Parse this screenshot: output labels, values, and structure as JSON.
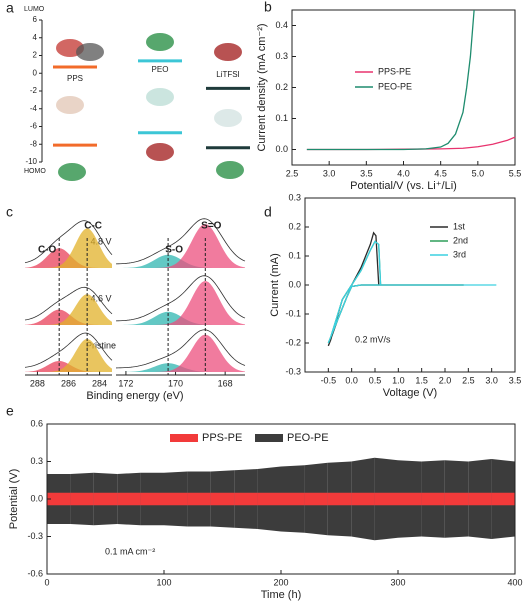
{
  "chart_data": [
    {
      "type": "energy-level",
      "panel_label": "a",
      "top_label": "LUMO",
      "bottom_label": "HOMO",
      "ylim": [
        -10,
        6
      ],
      "yticks": [
        6,
        4,
        2,
        0,
        -2,
        -4,
        -6,
        -8,
        -10
      ],
      "categories": [
        "PPS",
        "PEO",
        "LiTFSI"
      ],
      "colors": [
        "#f26b2a",
        "#3cc6d6",
        "#1f3b3b"
      ],
      "series": [
        {
          "name": "LUMO",
          "values": [
            0.7,
            1.4,
            -1.7
          ]
        },
        {
          "name": "HOMO",
          "values": [
            -8.1,
            -6.7,
            -8.4
          ]
        }
      ]
    },
    {
      "type": "line",
      "panel_label": "b",
      "xlabel": "Potential/V (vs. Li⁺/Li)",
      "ylabel": "Current density (mA cm⁻²)",
      "xlim": [
        2.5,
        5.5
      ],
      "xticks": [
        2.5,
        {
          "value": 3,
          "label": "3.0"
        },
        3.5,
        {
          "value": 4,
          "label": "4.0"
        },
        4.5,
        {
          "value": 5,
          "label": "5.0"
        },
        5.5
      ],
      "ylim": [
        -0.05,
        0.45
      ],
      "yticks": [
        {
          "value": 0,
          "label": "0.0"
        },
        0.1,
        0.2,
        0.3,
        0.4
      ],
      "series": [
        {
          "name": "PPS-PE",
          "color": "#e8336e",
          "x": [
            2.7,
            3.5,
            4.0,
            4.5,
            4.8,
            5.0,
            5.2,
            5.4,
            5.5
          ],
          "values": [
            0,
            0,
            0.001,
            0.002,
            0.004,
            0.009,
            0.017,
            0.03,
            0.04
          ]
        },
        {
          "name": "PEO-PE",
          "color": "#1e8c6e",
          "x": [
            2.7,
            3.0,
            3.5,
            4.0,
            4.3,
            4.5,
            4.6,
            4.7,
            4.8,
            4.85,
            4.9,
            4.95
          ],
          "values": [
            0,
            0,
            0,
            0,
            0.002,
            0.008,
            0.02,
            0.05,
            0.12,
            0.2,
            0.3,
            0.45
          ]
        }
      ]
    },
    {
      "type": "spectra",
      "panel_label": "c",
      "xlabel": "Binding energy (eV)",
      "segments": [
        {
          "xlim": [
            288.8,
            283.2
          ],
          "xticks": [
            288,
            286,
            284
          ]
        },
        {
          "xlim": [
            172.4,
            167.2
          ],
          "xticks": [
            172,
            170,
            168
          ]
        }
      ],
      "peaks": [
        {
          "name": "C-O",
          "center": 286.6,
          "segment": 0,
          "color": "#e8405a"
        },
        {
          "name": "C-C",
          "center": 284.8,
          "segment": 0,
          "color": "#e2b22a"
        },
        {
          "name": "S-O",
          "center": 170.3,
          "segment": 1,
          "color": "#2fb5b0"
        },
        {
          "name": "S=O",
          "center": 168.8,
          "segment": 1,
          "color": "#ec4f7e"
        }
      ],
      "rows": [
        {
          "name": "4.8 V",
          "heights": [
            0.45,
            0.9,
            0.3,
            1.0
          ]
        },
        {
          "name": "4.6 V",
          "heights": [
            0.35,
            0.7,
            0.3,
            1.0
          ]
        },
        {
          "name": "Pristine",
          "heights": [
            0.25,
            0.75,
            0.2,
            0.85
          ]
        }
      ]
    },
    {
      "type": "line",
      "panel_label": "d",
      "xlabel": "Voltage (V)",
      "ylabel": "Current (mA)",
      "annotation": "0.2 mV/s",
      "xlim": [
        -1,
        3.5
      ],
      "xticks": [
        -0.5,
        {
          "value": 0,
          "label": "0.0"
        },
        0.5,
        {
          "value": 1,
          "label": "1.0"
        },
        1.5,
        {
          "value": 2,
          "label": "2.0"
        },
        2.5,
        {
          "value": 3,
          "label": "3.0"
        },
        3.5
      ],
      "ylim": [
        -0.3,
        0.3
      ],
      "yticks": [
        0.3,
        0.2,
        0.1,
        {
          "value": 0,
          "label": "0.0"
        },
        -0.1,
        -0.2,
        -0.3
      ],
      "series": [
        {
          "name": "1st",
          "color": "#2b2b2b",
          "x": [
            2.4,
            1.0,
            0.2,
            0.0,
            -0.1,
            -0.3,
            -0.5,
            -0.45,
            -0.2,
            0.0,
            0.2,
            0.4,
            0.47,
            0.52,
            0.58,
            1.0,
            1.2
          ],
          "values": [
            0,
            0,
            0,
            -0.005,
            -0.04,
            -0.12,
            -0.21,
            -0.19,
            -0.05,
            0,
            0.06,
            0.14,
            0.18,
            0.17,
            0,
            0,
            0
          ]
        },
        {
          "name": "2nd",
          "color": "#2e9e5a",
          "x": [
            1.2,
            0.2,
            0.0,
            -0.1,
            -0.3,
            -0.5,
            -0.45,
            -0.2,
            0.0,
            0.2,
            0.4,
            0.5,
            0.58,
            0.62,
            1.0,
            2.4
          ],
          "values": [
            0,
            0,
            -0.005,
            -0.04,
            -0.12,
            -0.2,
            -0.18,
            -0.05,
            0,
            0.05,
            0.12,
            0.15,
            0.14,
            0,
            0,
            0
          ]
        },
        {
          "name": "3rd",
          "color": "#3cd0e0",
          "x": [
            2.4,
            0.2,
            0.0,
            -0.1,
            -0.3,
            -0.5,
            -0.45,
            -0.2,
            0.0,
            0.2,
            0.4,
            0.5,
            0.58,
            0.62,
            1.0,
            3.1
          ],
          "values": [
            0,
            0,
            -0.005,
            -0.04,
            -0.12,
            -0.2,
            -0.18,
            -0.05,
            0,
            0.05,
            0.12,
            0.15,
            0.14,
            0,
            0,
            0
          ]
        }
      ]
    },
    {
      "type": "band",
      "panel_label": "e",
      "xlabel": "Time (h)",
      "ylabel": "Potential (V)",
      "annotation": "0.1 mA cm⁻²",
      "xlim": [
        0,
        400
      ],
      "xticks": [
        0,
        100,
        200,
        300,
        400
      ],
      "ylim": [
        -0.6,
        0.6
      ],
      "yticks": [
        0.6,
        0.3,
        {
          "value": 0,
          "label": "0.0"
        },
        -0.3,
        -0.6
      ],
      "x": [
        0,
        20,
        40,
        60,
        80,
        100,
        120,
        140,
        160,
        180,
        200,
        220,
        240,
        260,
        280,
        300,
        320,
        340,
        360,
        380,
        400
      ],
      "series": [
        {
          "name": "PEO-PE",
          "color": "#3c3c3c",
          "values": [
            0.2,
            0.2,
            0.21,
            0.2,
            0.21,
            0.21,
            0.22,
            0.22,
            0.23,
            0.24,
            0.26,
            0.27,
            0.29,
            0.3,
            0.33,
            0.31,
            0.3,
            0.31,
            0.3,
            0.32,
            0.3
          ]
        },
        {
          "name": "PPS-PE",
          "color": "#f23a3a",
          "values": [
            0.05,
            0.05,
            0.05,
            0.05,
            0.05,
            0.05,
            0.05,
            0.05,
            0.05,
            0.05,
            0.05,
            0.05,
            0.05,
            0.05,
            0.05,
            0.05,
            0.05,
            0.05,
            0.05,
            0.05,
            0.05
          ]
        }
      ]
    }
  ]
}
